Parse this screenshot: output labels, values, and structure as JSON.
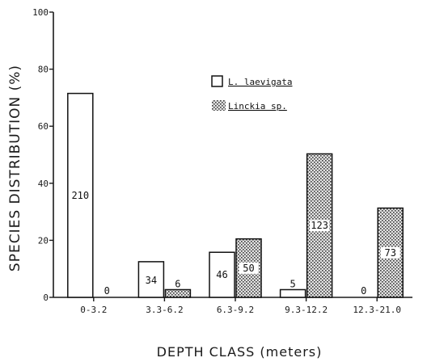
{
  "chart_data": {
    "type": "bar",
    "xlabel": "DEPTH CLASS (meters)",
    "ylabel": "SPECIES DISTRIBUTION (%)",
    "ylim": [
      0,
      100
    ],
    "yticks": [
      0,
      20,
      40,
      60,
      80,
      100
    ],
    "categories": [
      "0-3.2",
      "3.3-6.2",
      "6.3-9.2",
      "9.3-12.2",
      "12.3-21.0"
    ],
    "series": [
      {
        "name": "L. laevigata",
        "values": [
          71.5,
          12.5,
          15.8,
          2.7,
          0
        ],
        "labels": [
          "210",
          "34",
          "46",
          "5",
          "0"
        ],
        "fill": "plain"
      },
      {
        "name": "Linckia sp.",
        "values": [
          0,
          2.7,
          20.5,
          50.3,
          31.3
        ],
        "labels": [
          "0",
          "6",
          "50",
          "123",
          "73"
        ],
        "fill": "stipple"
      }
    ],
    "legend_position": "top-right",
    "grid": false
  }
}
